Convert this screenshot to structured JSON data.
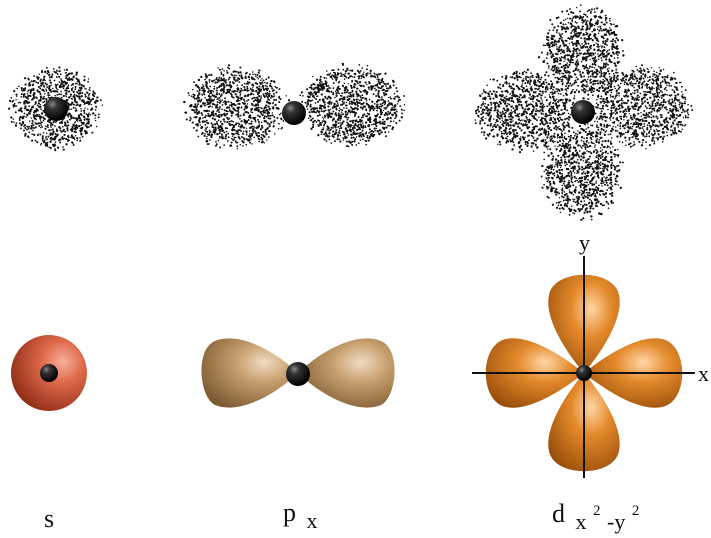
{
  "colors": {
    "background": "#ffffff",
    "dots": "#111111",
    "nucleus": "#111111",
    "axis": "#111111",
    "s_orbital": "#c8462a",
    "p_orbital": "#b08a5e",
    "d_orbital": "#cc6e14"
  },
  "axes": {
    "x_label": "x",
    "y_label": "y"
  },
  "orbitals": [
    {
      "id": "s",
      "label": "s",
      "shape": "sphere",
      "color_key": "s_orbital"
    },
    {
      "id": "px",
      "label_main": "p",
      "label_sub": "x",
      "shape": "dumbbell-horizontal",
      "color_key": "p_orbital"
    },
    {
      "id": "dx2y2",
      "label_main": "d",
      "label_sub_1": "x",
      "label_sup_1": "2",
      "label_sub_dash": "-y",
      "label_sup_2": "2",
      "shape": "four-lobes",
      "color_key": "d_orbital"
    }
  ]
}
